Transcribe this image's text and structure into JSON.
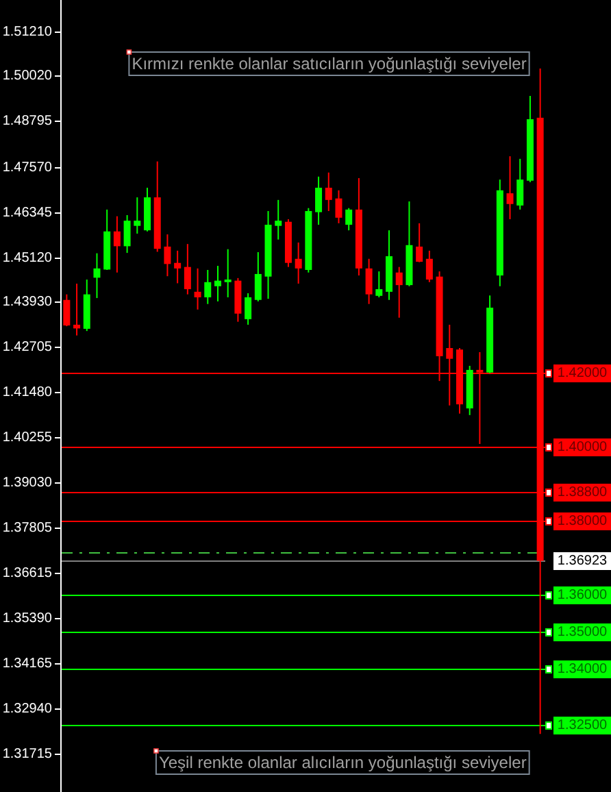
{
  "chart_data": {
    "type": "candlestick",
    "categories": [
      null,
      null,
      null,
      null,
      null,
      null,
      null,
      null,
      null,
      null,
      null,
      null,
      null,
      null,
      null,
      null,
      null,
      null,
      null,
      null,
      null,
      null,
      null,
      null,
      null,
      null,
      null,
      null,
      null,
      null,
      null,
      null,
      null,
      null,
      null,
      null,
      null,
      null,
      null,
      null,
      null,
      null,
      null,
      null,
      null,
      null,
      null,
      null
    ],
    "ohlc": [
      [
        1.4397,
        1.4412,
        1.4326,
        1.4328
      ],
      [
        1.433,
        1.4441,
        1.4301,
        1.432
      ],
      [
        1.4319,
        1.4452,
        1.4313,
        1.4412
      ],
      [
        1.4457,
        1.4523,
        1.4402,
        1.4482
      ],
      [
        1.4479,
        1.4641,
        1.4478,
        1.4582
      ],
      [
        1.4582,
        1.4623,
        1.4471,
        1.4542
      ],
      [
        1.4542,
        1.4626,
        1.4524,
        1.4611
      ],
      [
        1.4597,
        1.4674,
        1.4576,
        1.4611
      ],
      [
        1.4585,
        1.47,
        1.4582,
        1.4674
      ],
      [
        1.4674,
        1.4771,
        1.4527,
        1.4535
      ],
      [
        1.4541,
        1.4574,
        1.4461,
        1.4494
      ],
      [
        1.4497,
        1.453,
        1.4442,
        1.4482
      ],
      [
        1.4486,
        1.4548,
        1.4412,
        1.4426
      ],
      [
        1.4419,
        1.4482,
        1.4371,
        1.4404
      ],
      [
        1.4404,
        1.4478,
        1.4386,
        1.4445
      ],
      [
        1.4434,
        1.4489,
        1.4393,
        1.4449
      ],
      [
        1.4445,
        1.4534,
        1.4404,
        1.4452
      ],
      [
        1.4449,
        1.4456,
        1.4338,
        1.436
      ],
      [
        1.4345,
        1.4415,
        1.433,
        1.4404
      ],
      [
        1.4397,
        1.4526,
        1.4393,
        1.4467
      ],
      [
        1.446,
        1.4637,
        1.44,
        1.46
      ],
      [
        1.4597,
        1.4667,
        1.456,
        1.4611
      ],
      [
        1.4608,
        1.4615,
        1.4486,
        1.4497
      ],
      [
        1.4508,
        1.4552,
        1.4441,
        1.4482
      ],
      [
        1.4478,
        1.4645,
        1.4471,
        1.4637
      ],
      [
        1.4634,
        1.473,
        1.46,
        1.47
      ],
      [
        1.47,
        1.4741,
        1.4637,
        1.4667
      ],
      [
        1.4671,
        1.4693,
        1.4604,
        1.4619
      ],
      [
        1.46,
        1.4645,
        1.4585,
        1.4641
      ],
      [
        1.4641,
        1.4726,
        1.4463,
        1.4482
      ],
      [
        1.4482,
        1.4508,
        1.4386,
        1.4412
      ],
      [
        1.4408,
        1.4474,
        1.4404,
        1.4426
      ],
      [
        1.4419,
        1.4585,
        1.4397,
        1.4515
      ],
      [
        1.4471,
        1.4486,
        1.4349,
        1.4437
      ],
      [
        1.4437,
        1.4663,
        1.4434,
        1.4545
      ],
      [
        1.4541,
        1.4604,
        1.4499,
        1.45
      ],
      [
        1.4508,
        1.453,
        1.4445,
        1.4452
      ],
      [
        1.446,
        1.4474,
        1.4178,
        1.4245
      ],
      [
        1.4267,
        1.433,
        1.4112,
        1.4238
      ],
      [
        1.4263,
        1.4267,
        1.409,
        1.4115
      ],
      [
        1.4104,
        1.4219,
        1.4086,
        1.4208
      ],
      [
        1.4208,
        1.4256,
        1.4008,
        1.4201
      ],
      [
        1.4201,
        1.4409,
        1.4199,
        1.4376
      ],
      [
        1.4463,
        1.4722,
        1.4434,
        1.4693
      ],
      [
        1.4685,
        1.4785,
        1.4615,
        1.4656
      ],
      [
        1.4652,
        1.4778,
        1.4641,
        1.4722
      ],
      [
        1.4719,
        1.4948,
        1.4715,
        1.4885
      ],
      [
        1.4889,
        1.5022,
        1.3225,
        1.36923
      ]
    ],
    "colors": [
      "#ff0000",
      "#ff0000",
      "#00ff00",
      "#00ff00",
      "#00ff00",
      "#ff0000",
      "#00ff00",
      "#00ff00",
      "#00ff00",
      "#ff0000",
      "#ff0000",
      "#ff0000",
      "#ff0000",
      "#ff0000",
      "#00ff00",
      "#00ff00",
      "#00ff00",
      "#ff0000",
      "#00ff00",
      "#00ff00",
      "#00ff00",
      "#00ff00",
      "#ff0000",
      "#ff0000",
      "#00ff00",
      "#00ff00",
      "#ff0000",
      "#ff0000",
      "#00ff00",
      "#ff0000",
      "#ff0000",
      "#00ff00",
      "#00ff00",
      "#ff0000",
      "#00ff00",
      "#ff0000",
      "#ff0000",
      "#ff0000",
      "#ff0000",
      "#ff0000",
      "#00ff00",
      "#ff0000",
      "#00ff00",
      "#00ff00",
      "#ff0000",
      "#00ff00",
      "#00ff00",
      "#ff0000"
    ],
    "ylim": [
      1.3068,
      1.5207
    ],
    "yticks": [
      {
        "value": 1.5121,
        "label": "1.51210"
      },
      {
        "value": 1.5002,
        "label": "1.50020"
      },
      {
        "value": 1.48795,
        "label": "1.48795"
      },
      {
        "value": 1.4757,
        "label": "1.47570"
      },
      {
        "value": 1.46345,
        "label": "1.46345"
      },
      {
        "value": 1.4512,
        "label": "1.45120"
      },
      {
        "value": 1.4393,
        "label": "1.43930"
      },
      {
        "value": 1.42705,
        "label": "1.42705"
      },
      {
        "value": 1.4148,
        "label": "1.41480"
      },
      {
        "value": 1.40255,
        "label": "1.40255"
      },
      {
        "value": 1.3903,
        "label": "1.39030"
      },
      {
        "value": 1.37805,
        "label": "1.37805"
      },
      {
        "value": 1.36615,
        "label": "1.36615"
      },
      {
        "value": 1.3539,
        "label": "1.35390"
      },
      {
        "value": 1.34165,
        "label": "1.34165"
      },
      {
        "value": 1.3294,
        "label": "1.32940"
      },
      {
        "value": 1.31715,
        "label": "1.31715"
      }
    ],
    "ref_lines": [
      {
        "axis": "y",
        "value": 1.42,
        "label": "1.42000",
        "color": "#ff0000"
      },
      {
        "axis": "y",
        "value": 1.4,
        "label": "1.40000",
        "color": "#ff0000"
      },
      {
        "axis": "y",
        "value": 1.388,
        "label": "1.38800",
        "color": "#ff0000"
      },
      {
        "axis": "y",
        "value": 1.38,
        "label": "1.38000",
        "color": "#ff0000"
      },
      {
        "axis": "y",
        "value": 1.3715,
        "color": "#40c040",
        "line_style": "dashed"
      },
      {
        "axis": "y",
        "value": 1.36923,
        "label": "1.36923",
        "color": "#808080"
      },
      {
        "axis": "y",
        "value": 1.36,
        "label": "1.36000",
        "color": "#00ff00"
      },
      {
        "axis": "y",
        "value": 1.35,
        "label": "1.35000",
        "color": "#00ff00"
      },
      {
        "axis": "y",
        "value": 1.34,
        "label": "1.34000",
        "color": "#00ff00"
      },
      {
        "axis": "y",
        "value": 1.325,
        "label": "1.32500",
        "color": "#00ff00"
      }
    ],
    "annotations": [
      "Kırmızı renkte olanlar satıcıların yoğunlaştığı seviyeler",
      "Yeşil renkte olanlar alıcıların yoğunlaştığı seviyeler"
    ],
    "tick_labels": "y"
  }
}
